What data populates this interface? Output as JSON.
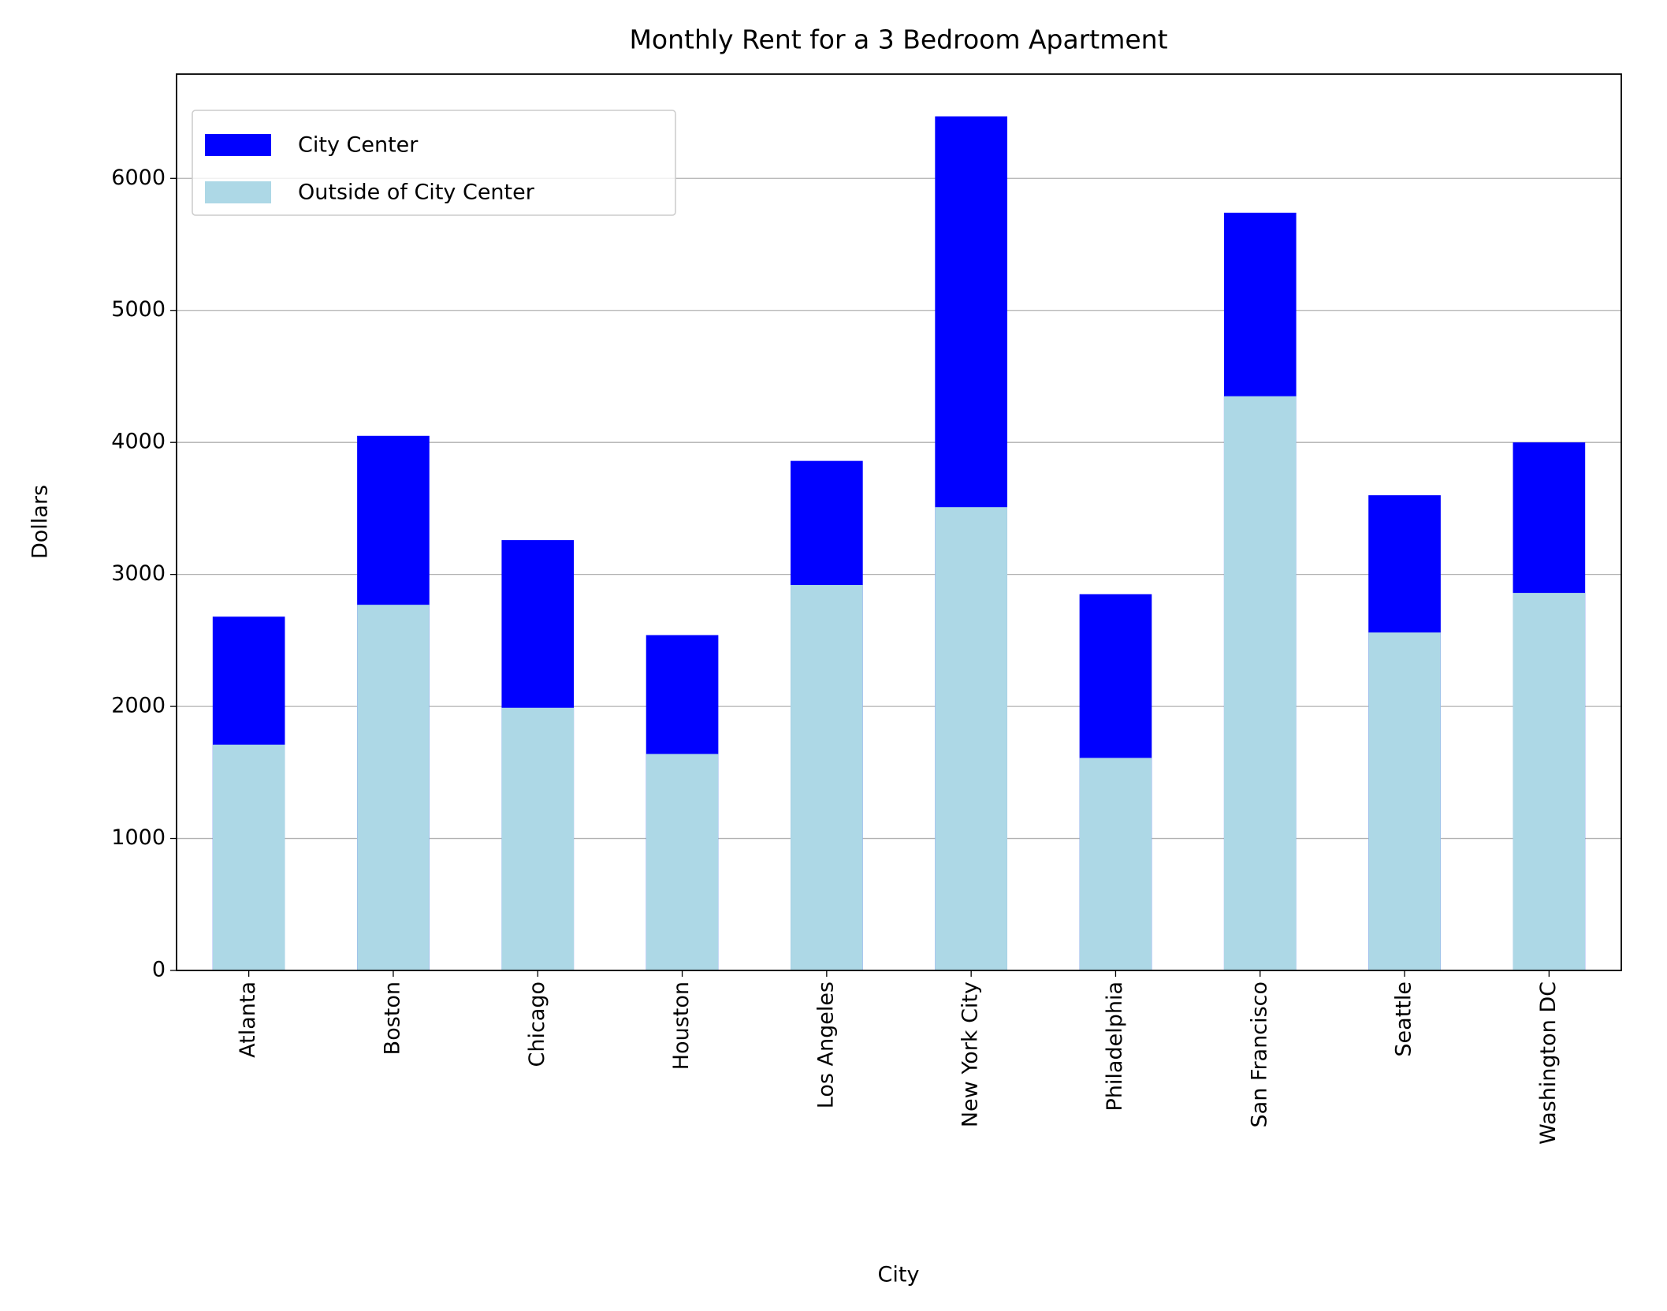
{
  "chart_data": {
    "type": "bar",
    "title": "Monthly Rent for a 3 Bedroom Apartment",
    "x_label": "City",
    "y_label": "Dollars",
    "categories": [
      "Atlanta",
      "Boston",
      "Chicago",
      "Houston",
      "Los Angeles",
      "New York City",
      "Philadelphia",
      "San Francisco",
      "Seattle",
      "Washington DC"
    ],
    "series": [
      {
        "name": "City Center",
        "color": "#0000ff",
        "values": [
          2680,
          4050,
          3260,
          2540,
          3860,
          6470,
          2850,
          5740,
          3600,
          4000
        ]
      },
      {
        "name": "Outside of City Center",
        "color": "#add8e6",
        "values": [
          1710,
          2770,
          1990,
          1640,
          2920,
          3510,
          1610,
          4350,
          2560,
          2860
        ]
      }
    ],
    "ylim": [
      0,
      6790
    ],
    "yticks": [
      0,
      1000,
      2000,
      3000,
      4000,
      5000,
      6000
    ],
    "grid": true,
    "legend": "upper left"
  }
}
